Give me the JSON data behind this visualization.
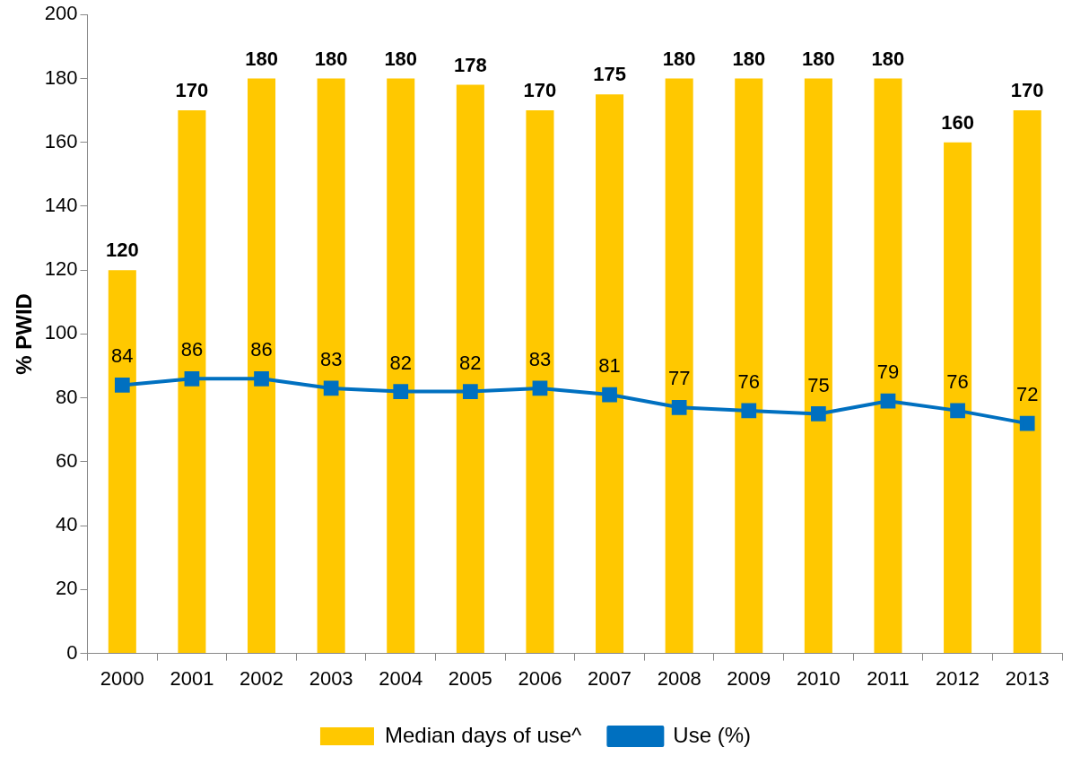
{
  "chart_data": {
    "type": "bar",
    "ylabel": "% PWID",
    "categories": [
      "2000",
      "2001",
      "2002",
      "2003",
      "2004",
      "2005",
      "2006",
      "2007",
      "2008",
      "2009",
      "2010",
      "2011",
      "2012",
      "2013"
    ],
    "series": [
      {
        "name": "Median days of use^",
        "color": "#ffc800",
        "values": [
          120,
          170,
          180,
          180,
          180,
          178,
          170,
          175,
          180,
          180,
          180,
          180,
          160,
          170
        ]
      },
      {
        "name": "Use (%)",
        "type": "line",
        "color": "#0070c0",
        "marker": "square",
        "values": [
          84,
          86,
          86,
          83,
          82,
          82,
          83,
          81,
          77,
          76,
          75,
          79,
          76,
          72
        ]
      }
    ],
    "ylim": [
      0,
      200
    ],
    "yticks": [
      0,
      20,
      40,
      60,
      80,
      100,
      120,
      140,
      160,
      180,
      200
    ],
    "grid": false,
    "legend": "bottom",
    "data_labels": true
  }
}
